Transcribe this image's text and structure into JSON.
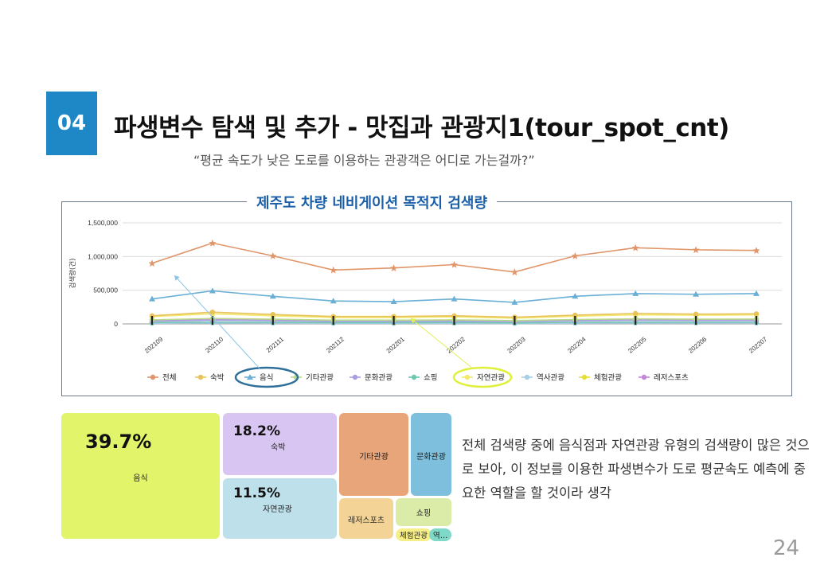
{
  "header": {
    "badge": "04",
    "title": "파생변수 탐색 및 추가 - 맛집과 관광지1(tour_spot_cnt)",
    "subtitle": "“평균 속도가 낮은 도로를 이용하는 관광객은 어디로 가는걸까?”"
  },
  "colors": {
    "badge": "#1e88c7",
    "chart_title": "#1a5fa8",
    "highlight_food": "#2f6f9a",
    "highlight_nature": "#dff03a"
  },
  "chart_data": [
    {
      "type": "line",
      "title": "제주도 차량 네비게이션 목적지 검색량",
      "ylabel": "검색량(건)",
      "xlabel": "",
      "ylim": [
        0,
        1500000
      ],
      "yticks": [
        0,
        500000,
        1000000,
        1500000
      ],
      "ytick_labels": [
        "0",
        "500,000",
        "1,000,000",
        "1,500,000"
      ],
      "categories": [
        "202109",
        "202110",
        "202111",
        "202112",
        "202201",
        "202202",
        "202203",
        "202204",
        "202205",
        "202206",
        "202207"
      ],
      "grid": true,
      "legend_position": "bottom",
      "series": [
        {
          "name": "전체",
          "color": "#e0956a",
          "values": [
            900000,
            1200000,
            1010000,
            800000,
            830000,
            880000,
            770000,
            1010000,
            1130000,
            1100000,
            1090000
          ]
        },
        {
          "name": "숙박",
          "color": "#e8c25a",
          "values": [
            120000,
            175000,
            140000,
            110000,
            110000,
            120000,
            100000,
            130000,
            155000,
            145000,
            150000
          ]
        },
        {
          "name": "음식",
          "color": "#6aafd6",
          "values": [
            370000,
            490000,
            410000,
            340000,
            330000,
            370000,
            320000,
            410000,
            450000,
            440000,
            450000
          ]
        },
        {
          "name": "기타관광",
          "color": "#b9d98a",
          "values": [
            60000,
            80000,
            70000,
            55000,
            55000,
            60000,
            50000,
            65000,
            75000,
            70000,
            72000
          ]
        },
        {
          "name": "문화관광",
          "color": "#a99ee3",
          "values": [
            40000,
            55000,
            48000,
            38000,
            38000,
            40000,
            34000,
            45000,
            52000,
            50000,
            50000
          ]
        },
        {
          "name": "쇼핑",
          "color": "#6fc7b0",
          "values": [
            20000,
            28000,
            24000,
            18000,
            18000,
            20000,
            16000,
            22000,
            26000,
            25000,
            25000
          ]
        },
        {
          "name": "자연관광",
          "color": "#f2e86a",
          "values": [
            110000,
            150000,
            120000,
            95000,
            95000,
            105000,
            85000,
            115000,
            135000,
            130000,
            135000
          ]
        },
        {
          "name": "역사관광",
          "color": "#a9cfe6",
          "values": [
            10000,
            14000,
            12000,
            9000,
            9000,
            10000,
            8000,
            11000,
            13000,
            12000,
            12000
          ]
        },
        {
          "name": "체험관광",
          "color": "#e6df3a",
          "values": [
            15000,
            20000,
            17000,
            13000,
            13000,
            14000,
            12000,
            16000,
            19000,
            18000,
            18000
          ]
        },
        {
          "name": "레저스포츠",
          "color": "#c486d8",
          "values": [
            50000,
            65000,
            57000,
            45000,
            45000,
            48000,
            40000,
            52000,
            60000,
            58000,
            58000
          ]
        }
      ]
    },
    {
      "type": "treemap",
      "items": [
        {
          "name": "음식",
          "share_pct": 39.7,
          "label": "39.7%",
          "color": "#e2f56a"
        },
        {
          "name": "숙박",
          "share_pct": 18.2,
          "label": "18.2%",
          "color": "#d8c5f2"
        },
        {
          "name": "자연관광",
          "share_pct": 11.5,
          "label": "11.5%",
          "color": "#bde0ea"
        },
        {
          "name": "기타관광",
          "label": "",
          "color": "#e8a57a"
        },
        {
          "name": "문화관광",
          "label": "",
          "color": "#7dbfdc"
        },
        {
          "name": "레저스포츠",
          "label": "",
          "color": "#f3d496"
        },
        {
          "name": "쇼핑",
          "label": "",
          "color": "#daeca8"
        },
        {
          "name": "체험관광",
          "label": "",
          "color": "#f6ee86"
        },
        {
          "name": "역…",
          "label": "",
          "color": "#7fd8c8"
        }
      ]
    }
  ],
  "description": "전체 검색량 중에 음식점과 자연관광 유형의 검색량이 많은 것으로 보아, 이 정보를 이용한 파생변수가 도로 평균속도 예측에 중요한 역할을 할 것이라 생각",
  "page_number": "24"
}
